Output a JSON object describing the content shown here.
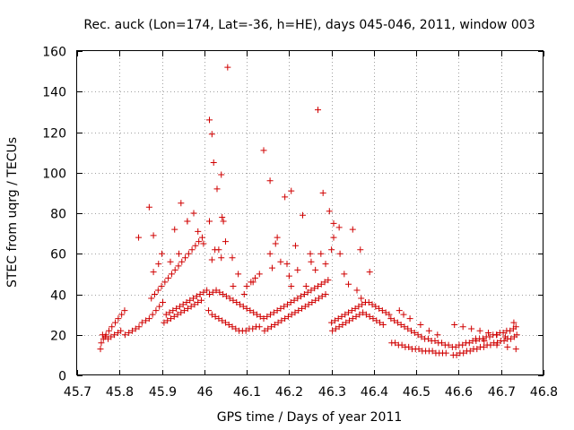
{
  "chart_data": {
    "type": "scatter",
    "title": "Rec. auck (Lon=174, Lat=-36, h=HE), days 045-046, 2011, window 003",
    "xlabel": "GPS time / Days of year 2011",
    "ylabel": "STEC from uqrg / TECUs",
    "xlim": [
      45.7,
      46.8
    ],
    "ylim": [
      0,
      160
    ],
    "x_ticks": [
      45.7,
      45.8,
      45.9,
      46.0,
      46.1,
      46.2,
      46.3,
      46.4,
      46.5,
      46.6,
      46.7,
      46.8
    ],
    "x_tick_labels": [
      "45.7",
      "45.8",
      "45.9",
      "46",
      "46.1",
      "46.2",
      "46.3",
      "46.4",
      "46.5",
      "46.6",
      "46.7",
      "46.8"
    ],
    "y_ticks": [
      0,
      20,
      40,
      60,
      80,
      100,
      120,
      140,
      160
    ],
    "y_tick_labels": [
      "0",
      "20",
      "40",
      "60",
      "80",
      "100",
      "120",
      "140",
      "160"
    ],
    "grid": true,
    "marker": "+",
    "color": "#d00000",
    "series": [
      {
        "name": "STEC",
        "x": [
          45.755,
          45.757,
          45.762,
          45.768,
          45.775,
          45.782,
          45.79,
          45.797,
          45.805,
          45.812,
          45.76,
          45.766,
          45.773,
          45.78,
          45.788,
          45.796,
          45.803,
          45.813,
          45.822,
          45.83,
          45.838,
          45.846,
          45.853,
          45.862,
          45.87,
          45.878,
          45.886,
          45.894,
          45.902,
          45.91,
          45.918,
          45.926,
          45.934,
          45.942,
          45.95,
          45.958,
          45.966,
          45.974,
          45.982,
          45.99,
          45.998,
          46.006,
          45.905,
          45.913,
          45.921,
          45.929,
          45.937,
          45.945,
          45.953,
          45.961,
          45.969,
          45.977,
          45.985,
          45.993,
          45.875,
          45.883,
          45.891,
          45.899,
          45.907,
          45.915,
          45.923,
          45.931,
          45.939,
          45.947,
          45.955,
          45.963,
          45.971,
          45.979,
          45.987,
          45.995,
          46.01,
          46.018,
          46.026,
          46.034,
          46.042,
          46.05,
          46.058,
          46.066,
          46.074,
          46.082,
          46.09,
          46.098,
          46.106,
          46.114,
          46.122,
          46.13,
          46.012,
          46.02,
          46.028,
          46.036,
          46.044,
          46.052,
          46.06,
          46.068,
          46.076,
          46.084,
          46.092,
          46.1,
          46.108,
          46.116,
          46.124,
          46.132,
          46.14,
          46.148,
          46.156,
          46.164,
          46.172,
          46.18,
          46.188,
          46.196,
          46.204,
          46.212,
          46.22,
          46.228,
          46.236,
          46.244,
          46.252,
          46.26,
          46.268,
          46.276,
          46.284,
          46.292,
          46.142,
          46.15,
          46.158,
          46.166,
          46.174,
          46.182,
          46.19,
          46.198,
          46.206,
          46.214,
          46.222,
          46.23,
          46.238,
          46.246,
          46.254,
          46.262,
          46.27,
          46.278,
          46.286,
          46.3,
          46.308,
          46.316,
          46.324,
          46.332,
          46.34,
          46.348,
          46.356,
          46.364,
          46.372,
          46.38,
          46.388,
          46.396,
          46.404,
          46.412,
          46.42,
          46.428,
          46.436,
          46.302,
          46.31,
          46.318,
          46.326,
          46.334,
          46.342,
          46.35,
          46.358,
          46.366,
          46.374,
          46.382,
          46.39,
          46.398,
          46.406,
          46.414,
          46.422,
          46.44,
          46.448,
          46.456,
          46.464,
          46.472,
          46.48,
          46.488,
          46.496,
          46.504,
          46.512,
          46.52,
          46.528,
          46.536,
          46.544,
          46.552,
          46.56,
          46.568,
          46.576,
          46.442,
          46.45,
          46.458,
          46.466,
          46.474,
          46.482,
          46.49,
          46.498,
          46.506,
          46.514,
          46.522,
          46.53,
          46.538,
          46.546,
          46.554,
          46.562,
          46.57,
          46.585,
          46.593,
          46.601,
          46.609,
          46.617,
          46.625,
          46.633,
          46.641,
          46.649,
          46.657,
          46.665,
          46.673,
          46.681,
          46.689,
          46.697,
          46.705,
          46.713,
          46.721,
          46.729,
          46.735,
          46.587,
          46.595,
          46.603,
          46.611,
          46.619,
          46.627,
          46.635,
          46.643,
          46.651,
          46.659,
          46.667,
          46.675,
          46.683,
          46.691,
          46.699,
          46.707,
          46.715,
          46.723,
          46.731,
          46.737,
          46.59,
          46.61,
          46.63,
          46.65,
          46.67,
          46.69,
          46.71,
          46.73,
          45.845,
          45.87,
          45.88,
          45.892,
          45.93,
          45.945,
          45.96,
          45.975,
          45.985,
          45.998,
          46.012,
          46.018,
          46.022,
          46.03,
          46.04,
          46.045,
          46.055,
          46.068,
          46.08,
          46.094,
          46.115,
          46.14,
          46.155,
          46.172,
          46.19,
          46.205,
          46.215,
          46.232,
          46.25,
          46.268,
          46.28,
          46.295,
          46.305,
          46.318,
          46.35,
          46.368,
          46.39,
          46.012,
          46.018,
          46.025,
          46.042,
          46.05,
          46.066,
          46.155,
          46.168,
          46.195,
          46.205,
          46.262,
          46.275,
          46.305,
          46.32,
          46.034,
          46.04,
          45.96,
          45.94,
          46.252,
          46.286,
          46.3,
          46.33,
          46.34,
          46.36,
          46.37,
          46.38,
          46.46,
          46.47,
          46.485,
          46.51,
          46.53,
          46.55,
          46.64,
          46.66,
          46.69,
          46.715,
          46.735,
          45.88,
          45.9,
          45.92,
          46.1,
          46.11,
          46.12,
          46.13,
          46.16,
          46.18,
          46.2,
          46.22,
          46.24
        ],
        "y": [
          13,
          16,
          18,
          20,
          22,
          24,
          26,
          28,
          30,
          32,
          20,
          19,
          18,
          19,
          20,
          21,
          22,
          20,
          21,
          22,
          23,
          24,
          26,
          27,
          28,
          30,
          32,
          34,
          36,
          30,
          31,
          32,
          33,
          34,
          35,
          36,
          37,
          38,
          39,
          40,
          41,
          42,
          26,
          27,
          28,
          29,
          30,
          31,
          32,
          33,
          34,
          35,
          36,
          37,
          38,
          40,
          42,
          44,
          46,
          48,
          50,
          52,
          54,
          56,
          58,
          60,
          62,
          64,
          66,
          68,
          32,
          30,
          29,
          28,
          27,
          26,
          25,
          24,
          23,
          22,
          22,
          22,
          23,
          23,
          24,
          24,
          40,
          41,
          42,
          41,
          40,
          39,
          38,
          37,
          36,
          35,
          34,
          33,
          32,
          31,
          30,
          29,
          28,
          29,
          30,
          31,
          32,
          33,
          34,
          35,
          36,
          37,
          38,
          39,
          40,
          41,
          42,
          43,
          44,
          45,
          46,
          47,
          22,
          23,
          24,
          25,
          26,
          27,
          28,
          29,
          30,
          31,
          32,
          33,
          34,
          35,
          36,
          37,
          38,
          39,
          40,
          26,
          27,
          28,
          29,
          30,
          31,
          32,
          33,
          34,
          35,
          36,
          36,
          35,
          34,
          33,
          32,
          31,
          30,
          22,
          23,
          24,
          25,
          26,
          27,
          28,
          29,
          30,
          31,
          30,
          29,
          28,
          27,
          26,
          25,
          28,
          27,
          26,
          25,
          24,
          23,
          22,
          21,
          20,
          19,
          18,
          18,
          17,
          17,
          16,
          16,
          15,
          15,
          16,
          16,
          15,
          15,
          14,
          14,
          13,
          13,
          13,
          12,
          12,
          12,
          12,
          11,
          11,
          11,
          11,
          14,
          14,
          15,
          15,
          16,
          16,
          17,
          17,
          18,
          18,
          19,
          19,
          20,
          20,
          21,
          21,
          22,
          22,
          23,
          24,
          10,
          10,
          11,
          11,
          12,
          12,
          13,
          13,
          14,
          14,
          15,
          15,
          16,
          16,
          17,
          17,
          18,
          18,
          19,
          20,
          25,
          24,
          23,
          22,
          21,
          20,
          19,
          26,
          68,
          83,
          69,
          55,
          72,
          85,
          76,
          80,
          71,
          65,
          126,
          119,
          105,
          92,
          99,
          76,
          152,
          44,
          50,
          40,
          46,
          111,
          96,
          68,
          88,
          91,
          64,
          79,
          60,
          131,
          90,
          81,
          75,
          73,
          72,
          62,
          51,
          76,
          57,
          62,
          78,
          66,
          58,
          60,
          65,
          55,
          44,
          52,
          60,
          68,
          60,
          62,
          58,
          76,
          60,
          56,
          55,
          62,
          50,
          45,
          42,
          38,
          36,
          32,
          30,
          28,
          25,
          22,
          20,
          18,
          17,
          15,
          14,
          13,
          51,
          60,
          56,
          44,
          46,
          48,
          50,
          53,
          56,
          49,
          52,
          44
        ]
      }
    ]
  }
}
